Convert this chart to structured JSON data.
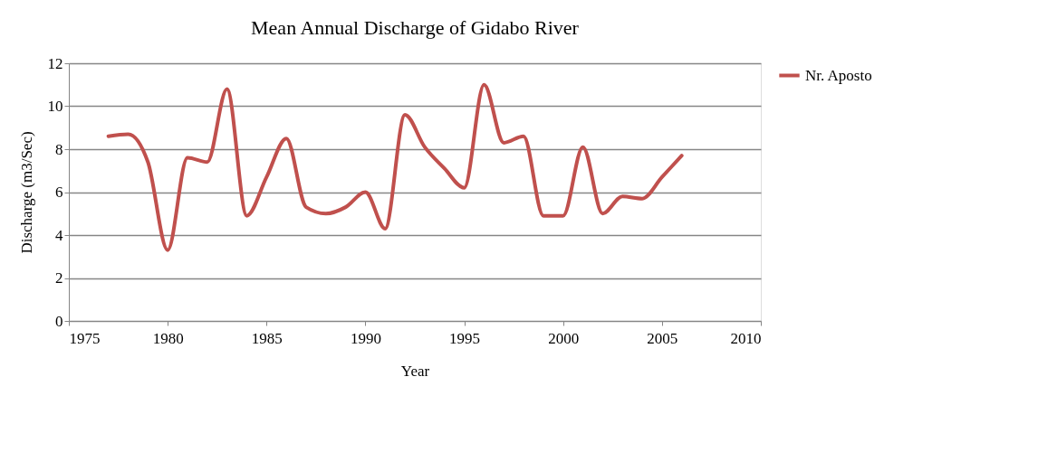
{
  "chart_data": {
    "type": "line",
    "title": "Mean Annual Discharge of Gidabo River",
    "xlabel": "Year",
    "ylabel": "Discharge (m3/Sec)",
    "x": [
      1977,
      1978,
      1979,
      1980,
      1981,
      1982,
      1983,
      1984,
      1985,
      1986,
      1987,
      1988,
      1989,
      1990,
      1991,
      1992,
      1993,
      1994,
      1995,
      1996,
      1997,
      1998,
      1999,
      2000,
      2001,
      2002,
      2003,
      2004,
      2005,
      2006
    ],
    "series": [
      {
        "name": "Nr. Aposto",
        "color": "#c0504d",
        "values": [
          8.6,
          8.7,
          7.4,
          3.3,
          7.6,
          7.4,
          10.8,
          4.9,
          6.7,
          8.5,
          5.3,
          5.0,
          5.3,
          6.0,
          4.3,
          9.6,
          8.1,
          7.1,
          6.2,
          11.0,
          8.3,
          8.6,
          4.9,
          4.9,
          8.1,
          5.0,
          5.8,
          5.7,
          6.7,
          7.7
        ]
      }
    ],
    "xlim": [
      1975,
      2010
    ],
    "xticks": [
      1975,
      1980,
      1985,
      1990,
      1995,
      2000,
      2005,
      2010
    ],
    "ylim": [
      0,
      12
    ],
    "yticks": [
      0,
      2,
      4,
      6,
      8,
      10,
      12
    ],
    "grid": "y",
    "legend": "right",
    "marker": "none",
    "line_style": "solid"
  }
}
